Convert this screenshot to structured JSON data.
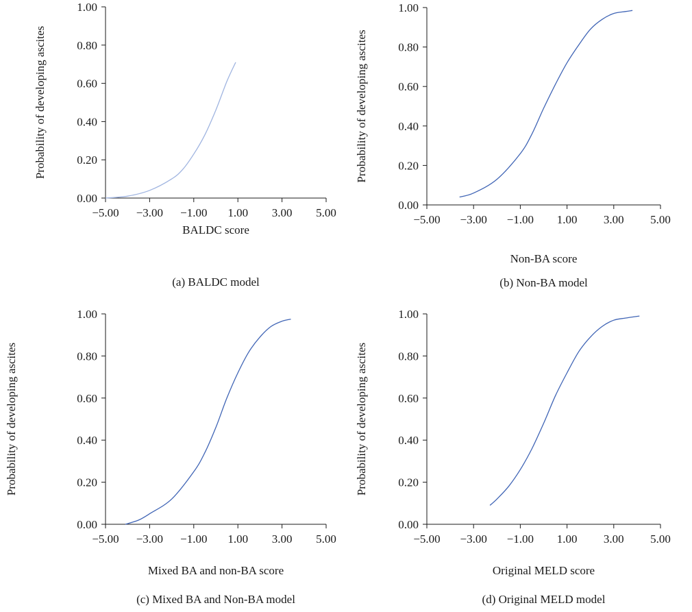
{
  "chart_data": [
    {
      "type": "line",
      "caption": "(a) BALDC model",
      "xlabel": "BALDC score",
      "ylabel": "Probability of developing ascites",
      "xlim": [
        -5,
        5
      ],
      "ylim": [
        0,
        1
      ],
      "xticks": [
        "−5.00",
        "−3.00",
        "−1.00",
        "1.00",
        "3.00",
        "5.00"
      ],
      "yticks": [
        "0.00",
        "0.20",
        "0.40",
        "0.60",
        "0.80",
        "1.00"
      ],
      "color": "#9fb4e0",
      "series": [
        {
          "x": [
            -5.0,
            -4.0,
            -3.0,
            -2.0,
            -1.5,
            -1.0,
            -0.5,
            0.0,
            0.5,
            0.9
          ],
          "y": [
            0.0,
            0.01,
            0.04,
            0.1,
            0.15,
            0.23,
            0.33,
            0.46,
            0.61,
            0.71
          ]
        }
      ]
    },
    {
      "type": "line",
      "caption": "(b) Non-BA model",
      "xlabel": "Non-BA score",
      "ylabel": "Probability of developing ascites",
      "xlim": [
        -5,
        5
      ],
      "ylim": [
        0,
        1
      ],
      "xticks": [
        "−5.00",
        "−3.00",
        "−1.00",
        "1.00",
        "3.00",
        "5.00"
      ],
      "yticks": [
        "0.00",
        "0.20",
        "0.40",
        "0.60",
        "0.80",
        "1.00"
      ],
      "color": "#3f64b5",
      "series": [
        {
          "x": [
            -3.6,
            -3.0,
            -2.0,
            -1.0,
            -0.5,
            0.0,
            0.5,
            1.0,
            1.5,
            2.0,
            2.5,
            3.0,
            3.5,
            3.8
          ],
          "y": [
            0.04,
            0.06,
            0.13,
            0.26,
            0.36,
            0.49,
            0.61,
            0.72,
            0.81,
            0.89,
            0.94,
            0.97,
            0.98,
            0.985
          ]
        }
      ]
    },
    {
      "type": "line",
      "caption": "(c) Mixed BA and Non-BA model",
      "xlabel": "Mixed BA and non-BA score",
      "ylabel": "Probability of developing ascites",
      "xlim": [
        -5,
        5
      ],
      "ylim": [
        0,
        1
      ],
      "xticks": [
        "−5.00",
        "−3.00",
        "−1.00",
        "1.00",
        "3.00",
        "5.00"
      ],
      "yticks": [
        "0.00",
        "0.20",
        "0.40",
        "0.60",
        "0.80",
        "1.00"
      ],
      "color": "#3f64b5",
      "series": [
        {
          "x": [
            -4.1,
            -3.5,
            -3.0,
            -2.0,
            -1.0,
            -0.5,
            0.0,
            0.5,
            1.0,
            1.5,
            2.0,
            2.5,
            3.0,
            3.4
          ],
          "y": [
            0.0,
            0.02,
            0.05,
            0.12,
            0.25,
            0.34,
            0.46,
            0.6,
            0.72,
            0.82,
            0.89,
            0.94,
            0.965,
            0.975
          ]
        }
      ]
    },
    {
      "type": "line",
      "caption": "(d) Original MELD model",
      "xlabel": "Original MELD score",
      "ylabel": "Probability of developing ascites",
      "xlim": [
        -5,
        5
      ],
      "ylim": [
        0,
        1
      ],
      "xticks": [
        "−5.00",
        "−3.00",
        "−1.00",
        "1.00",
        "3.00",
        "5.00"
      ],
      "yticks": [
        "0.00",
        "0.20",
        "0.40",
        "0.60",
        "0.80",
        "1.00"
      ],
      "color": "#3f64b5",
      "series": [
        {
          "x": [
            -2.3,
            -2.0,
            -1.5,
            -1.0,
            -0.5,
            0.0,
            0.5,
            1.0,
            1.5,
            2.0,
            2.5,
            3.0,
            3.5,
            4.1
          ],
          "y": [
            0.09,
            0.12,
            0.18,
            0.26,
            0.36,
            0.48,
            0.61,
            0.72,
            0.82,
            0.89,
            0.94,
            0.97,
            0.98,
            0.99
          ]
        }
      ]
    }
  ]
}
